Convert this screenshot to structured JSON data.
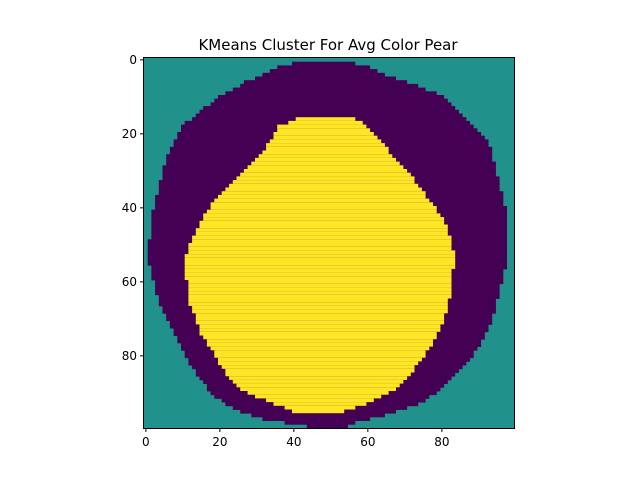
{
  "chart_data": {
    "type": "heatmap",
    "title": "KMeans Cluster For Avg Color Pear",
    "xlabel": "",
    "ylabel": "",
    "shape": [
      100,
      100
    ],
    "xlim": [
      -0.5,
      99.5
    ],
    "ylim": [
      99.5,
      -0.5
    ],
    "grid": false,
    "x_ticks": [
      0,
      20,
      40,
      60,
      80
    ],
    "y_ticks": [
      0,
      20,
      40,
      60,
      80
    ],
    "x_tick_labels": [
      "0",
      "20",
      "40",
      "60",
      "80"
    ],
    "y_tick_labels": [
      "0",
      "20",
      "40",
      "60",
      "80"
    ],
    "colormap": "viridis",
    "cluster_colors": {
      "background": "#21918c",
      "ring": "#440154",
      "core": "#fde725"
    },
    "clusters": {
      "ring_rows": [
        [
          1,
          40,
          56
        ],
        [
          2,
          36,
          60
        ],
        [
          4,
          32,
          64
        ],
        [
          6,
          27,
          70
        ],
        [
          8,
          24,
          75
        ],
        [
          10,
          20,
          80
        ],
        [
          14,
          15,
          84
        ],
        [
          18,
          10,
          88
        ],
        [
          22,
          8,
          92
        ],
        [
          26,
          6,
          93
        ],
        [
          30,
          5,
          94
        ],
        [
          34,
          4,
          95
        ],
        [
          38,
          3,
          96
        ],
        [
          42,
          2,
          97
        ],
        [
          46,
          2,
          97
        ],
        [
          50,
          1,
          97
        ],
        [
          54,
          1,
          97
        ],
        [
          58,
          2,
          96
        ],
        [
          62,
          3,
          95
        ],
        [
          66,
          4,
          94
        ],
        [
          70,
          6,
          93
        ],
        [
          74,
          8,
          91
        ],
        [
          78,
          10,
          89
        ],
        [
          82,
          12,
          86
        ],
        [
          86,
          15,
          82
        ],
        [
          90,
          18,
          78
        ],
        [
          93,
          22,
          73
        ],
        [
          95,
          26,
          67
        ],
        [
          97,
          32,
          60
        ],
        [
          98,
          38,
          56
        ],
        [
          99,
          44,
          54
        ]
      ],
      "core_rows": [
        [
          16,
          41,
          56
        ],
        [
          18,
          36,
          59
        ],
        [
          22,
          34,
          63
        ],
        [
          26,
          31,
          66
        ],
        [
          30,
          27,
          70
        ],
        [
          34,
          23,
          73
        ],
        [
          38,
          19,
          76
        ],
        [
          42,
          16,
          79
        ],
        [
          46,
          14,
          81
        ],
        [
          50,
          12,
          82
        ],
        [
          54,
          11,
          83
        ],
        [
          58,
          11,
          82
        ],
        [
          62,
          12,
          82
        ],
        [
          66,
          12,
          81
        ],
        [
          70,
          14,
          80
        ],
        [
          74,
          15,
          78
        ],
        [
          78,
          18,
          76
        ],
        [
          82,
          20,
          73
        ],
        [
          86,
          23,
          70
        ],
        [
          89,
          26,
          67
        ],
        [
          91,
          30,
          63
        ],
        [
          93,
          35,
          59
        ],
        [
          95,
          40,
          53
        ]
      ]
    }
  }
}
